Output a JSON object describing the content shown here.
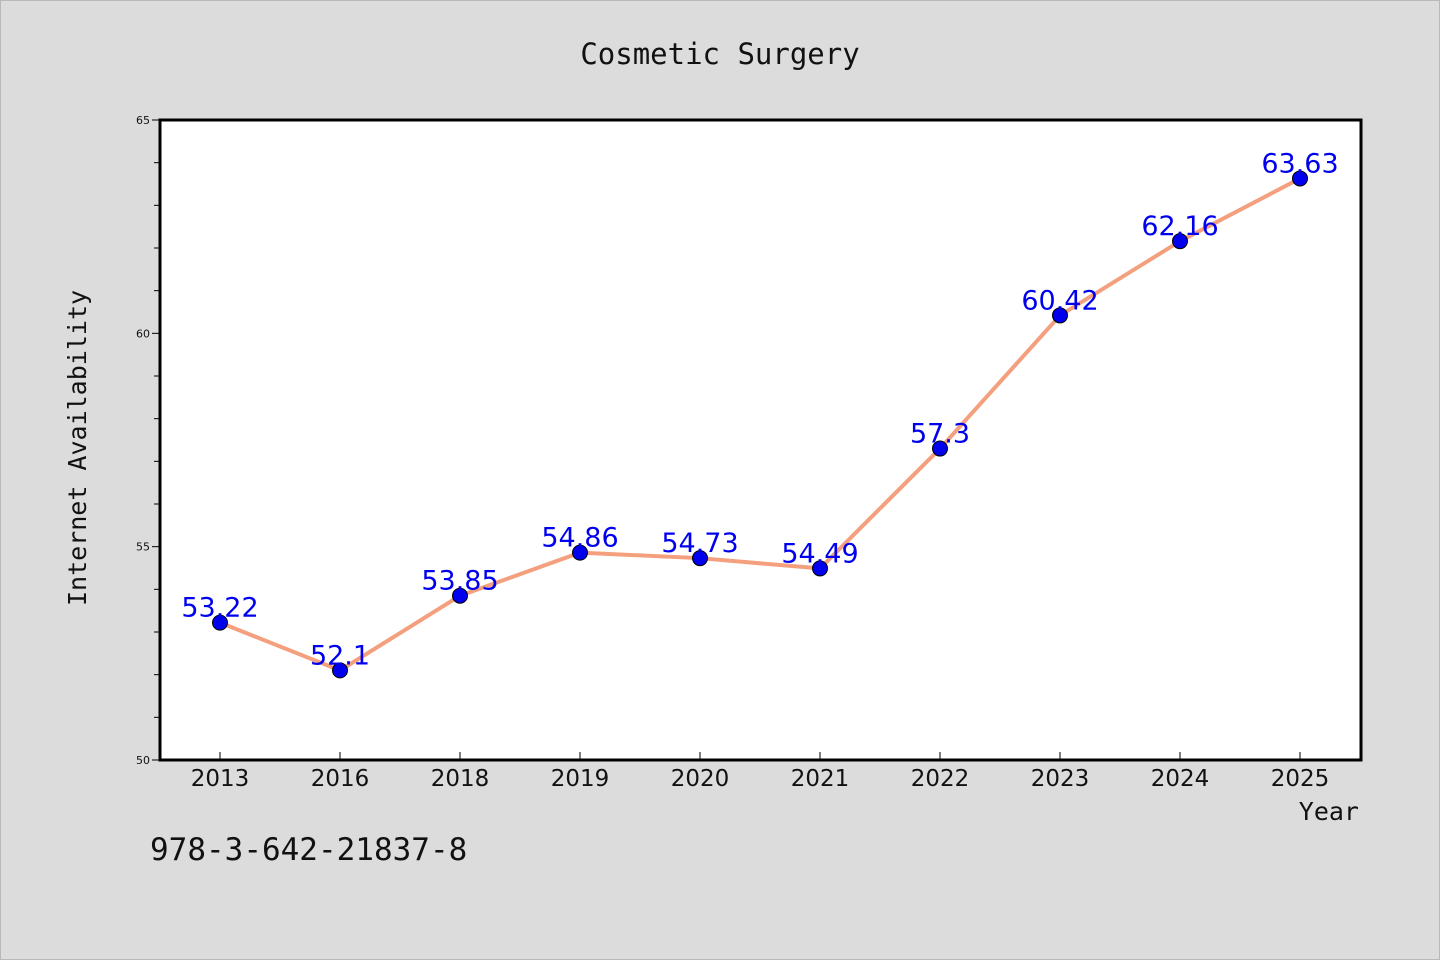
{
  "chart_data": {
    "type": "line",
    "title": "Cosmetic Surgery",
    "xlabel": "Year",
    "ylabel": "Internet Availability",
    "categories": [
      "2013",
      "2016",
      "2018",
      "2019",
      "2020",
      "2021",
      "2022",
      "2023",
      "2024",
      "2025"
    ],
    "series": [
      {
        "values": [
          53.22,
          52.1,
          53.85,
          54.86,
          54.73,
          54.49,
          57.3,
          60.42,
          62.16,
          63.63
        ],
        "data_labels": [
          "53.22",
          "52.1",
          "53.85",
          "54.86",
          "54.73",
          "54.49",
          "57.3",
          "60.42",
          "62.16",
          "63.63"
        ],
        "line_color": "#f4a07e",
        "marker_color": "#0000ee"
      }
    ],
    "ylim": [
      50,
      65
    ],
    "y_ticks": [
      "50",
      "55",
      "60",
      "65"
    ],
    "grid": false,
    "label_color": "#0000ee"
  },
  "footer": {
    "serial": "978-3-642-21837-8"
  }
}
